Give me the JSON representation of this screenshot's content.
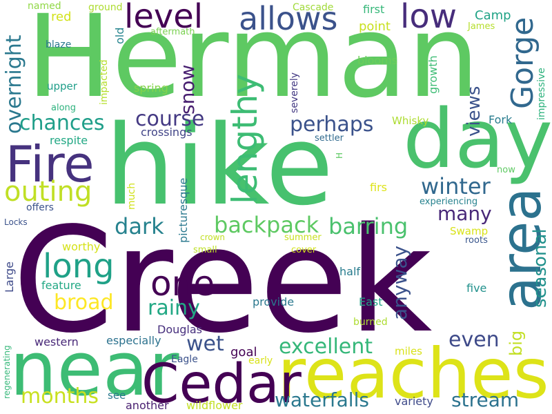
{
  "words": [
    {
      "text": "Creek",
      "color": "#440154"
    },
    {
      "text": "hike",
      "color": "#47c16e"
    },
    {
      "text": "Herman",
      "color": "#5ec962"
    },
    {
      "text": "day",
      "color": "#4ac16d"
    },
    {
      "text": "near",
      "color": "#3dbc74"
    },
    {
      "text": "reaches",
      "color": "#dde318"
    },
    {
      "text": "Cedar",
      "color": "#440154"
    },
    {
      "text": "area",
      "color": "#2c728e"
    },
    {
      "text": "Fire",
      "color": "#46327e"
    },
    {
      "text": "lengthy",
      "color": "#3dbc74"
    },
    {
      "text": "long",
      "color": "#1fa187"
    },
    {
      "text": "one",
      "color": "#440154"
    },
    {
      "text": "allows",
      "color": "#3b528b"
    },
    {
      "text": "level",
      "color": "#440154"
    },
    {
      "text": "low",
      "color": "#472d7b"
    },
    {
      "text": "Gorge",
      "color": "#31688e"
    },
    {
      "text": "outing",
      "color": "#c0df25"
    },
    {
      "text": "backpack",
      "color": "#5ec962"
    },
    {
      "text": "barring",
      "color": "#4ac16d"
    },
    {
      "text": "winter",
      "color": "#31688e"
    },
    {
      "text": "perhaps",
      "color": "#3b528b"
    },
    {
      "text": "chances",
      "color": "#1f9e89"
    },
    {
      "text": "course",
      "color": "#443983"
    },
    {
      "text": "overnight",
      "color": "#2a788e"
    },
    {
      "text": "snow",
      "color": "#481f70"
    },
    {
      "text": "dark",
      "color": "#26828e"
    },
    {
      "text": "broad",
      "color": "#fde725"
    },
    {
      "text": "rainy",
      "color": "#22a884"
    },
    {
      "text": "wet",
      "color": "#3b528b"
    },
    {
      "text": "excellent",
      "color": "#35b779"
    },
    {
      "text": "even",
      "color": "#3e4a89"
    },
    {
      "text": "months",
      "color": "#c8e020"
    },
    {
      "text": "waterfalls",
      "color": "#2a788e"
    },
    {
      "text": "stream",
      "color": "#2c728e"
    },
    {
      "text": "views",
      "color": "#3b528b"
    },
    {
      "text": "seasonal",
      "color": "#21918c"
    },
    {
      "text": "many",
      "color": "#482878"
    },
    {
      "text": "anyway",
      "color": "#3b528b"
    },
    {
      "text": "big",
      "color": "#c2df23"
    },
    {
      "text": "Camp",
      "color": "#20a386"
    },
    {
      "text": "James",
      "color": "#b5de2b"
    },
    {
      "text": "first",
      "color": "#35b779"
    },
    {
      "text": "point",
      "color": "#c8e020"
    },
    {
      "text": "Cascade",
      "color": "#a0da39"
    },
    {
      "text": "named",
      "color": "#8fd744"
    },
    {
      "text": "ground",
      "color": "#addc30"
    },
    {
      "text": "red",
      "color": "#d2e21b"
    },
    {
      "text": "old",
      "color": "#25848e"
    },
    {
      "text": "aftermath",
      "color": "#7ad151"
    },
    {
      "text": "blaze",
      "color": "#2a788e"
    },
    {
      "text": "blooms",
      "color": "#6ccd5a"
    },
    {
      "text": "growth",
      "color": "#3dbc74"
    },
    {
      "text": "impressive",
      "color": "#2db27d"
    },
    {
      "text": "upper",
      "color": "#1f9e89"
    },
    {
      "text": "impacted",
      "color": "#b5de2b"
    },
    {
      "text": "spring",
      "color": "#84d44b"
    },
    {
      "text": "severely",
      "color": "#443a83"
    },
    {
      "text": "along",
      "color": "#2db27d"
    },
    {
      "text": "Whisky",
      "color": "#addc30"
    },
    {
      "text": "Fork",
      "color": "#287c8e"
    },
    {
      "text": "respite",
      "color": "#22a884"
    },
    {
      "text": "crossings",
      "color": "#414487"
    },
    {
      "text": "settler",
      "color": "#306a8e"
    },
    {
      "text": "H",
      "color": "#5ec962"
    },
    {
      "text": "now",
      "color": "#5ec962"
    },
    {
      "text": "much",
      "color": "#d0e11c"
    },
    {
      "text": "firs",
      "color": "#dde318"
    },
    {
      "text": "experiencing",
      "color": "#26828e"
    },
    {
      "text": "offers",
      "color": "#3b528b"
    },
    {
      "text": "Locks",
      "color": "#3b528b"
    },
    {
      "text": "picturesque",
      "color": "#2a788e"
    },
    {
      "text": "crown",
      "color": "#c2df23"
    },
    {
      "text": "summer",
      "color": "#c8e020"
    },
    {
      "text": "Swamp",
      "color": "#d8e219"
    },
    {
      "text": "roots",
      "color": "#39568c"
    },
    {
      "text": "worthy",
      "color": "#d5e21a"
    },
    {
      "text": "small",
      "color": "#bddf26"
    },
    {
      "text": "cover",
      "color": "#d2e21b"
    },
    {
      "text": "Large",
      "color": "#3e4a89"
    },
    {
      "text": "half",
      "color": "#287c8e"
    },
    {
      "text": "feature",
      "color": "#22a884"
    },
    {
      "text": "five",
      "color": "#21918c"
    },
    {
      "text": "provide",
      "color": "#2a788e"
    },
    {
      "text": "East",
      "color": "#20a386"
    },
    {
      "text": "Douglas",
      "color": "#472f7d"
    },
    {
      "text": "burned",
      "color": "#addc30"
    },
    {
      "text": "western",
      "color": "#482878"
    },
    {
      "text": "especially",
      "color": "#2c728e"
    },
    {
      "text": "goal",
      "color": "#440154"
    },
    {
      "text": "miles",
      "color": "#d8e219"
    },
    {
      "text": "Eagle",
      "color": "#3b528b"
    },
    {
      "text": "early",
      "color": "#d8e219"
    },
    {
      "text": "regenerating",
      "color": "#35b779"
    },
    {
      "text": "see",
      "color": "#2a788e"
    },
    {
      "text": "another",
      "color": "#481f70"
    },
    {
      "text": "wildflower",
      "color": "#c2df23"
    },
    {
      "text": "variety",
      "color": "#3e4a89"
    }
  ]
}
